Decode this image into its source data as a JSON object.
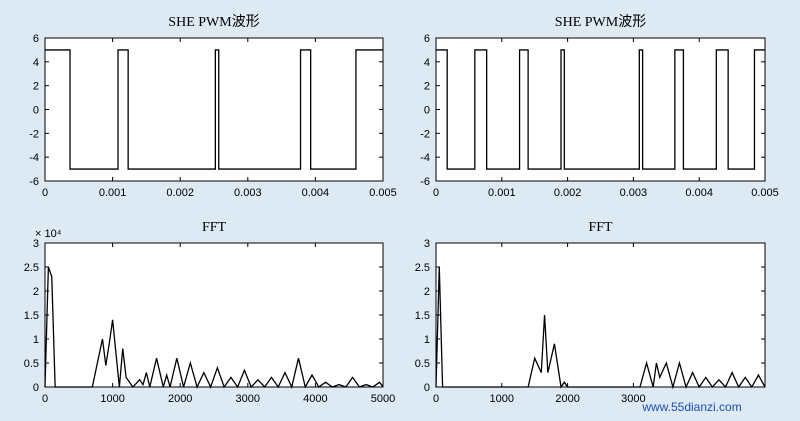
{
  "chart_data": [
    {
      "type": "line",
      "title": "SHE PWM波形",
      "xlabel": "",
      "ylabel": "",
      "xlim": [
        0,
        0.005
      ],
      "ylim": [
        -6,
        6
      ],
      "xticks": [
        "0",
        "0.001",
        "0.002",
        "0.003",
        "0.004",
        "0.005"
      ],
      "yticks": [
        "6",
        "4",
        "2",
        "0",
        "-2",
        "-4",
        "-6"
      ],
      "series": [
        {
          "x": [
            0,
            0.00037,
            0.00037,
            0.00108,
            0.00108,
            0.00123,
            0.00123,
            0.00252,
            0.00252,
            0.00257,
            0.00257,
            0.00378,
            0.00378,
            0.00393,
            0.00393,
            0.0046,
            0.0046,
            0.005
          ],
          "values": [
            5,
            5,
            -5,
            -5,
            5,
            5,
            -5,
            -5,
            5,
            5,
            -5,
            -5,
            5,
            5,
            -5,
            -5,
            5,
            5
          ]
        }
      ]
    },
    {
      "type": "line",
      "title": "SHE PWM波形",
      "xlabel": "",
      "ylabel": "",
      "xlim": [
        0,
        0.005
      ],
      "ylim": [
        -6,
        6
      ],
      "xticks": [
        "0",
        "0.001",
        "0.002",
        "0.003",
        "0.004",
        "0.005"
      ],
      "yticks": [
        "6",
        "4",
        "2",
        "0",
        "-2",
        "-4",
        "-6"
      ],
      "series": [
        {
          "x": [
            0,
            0.00017,
            0.00017,
            0.00059,
            0.00059,
            0.00077,
            0.00077,
            0.00127,
            0.00127,
            0.0014,
            0.0014,
            0.0019,
            0.0019,
            0.00195,
            0.00195,
            0.00309,
            0.00309,
            0.00314,
            0.00314,
            0.00363,
            0.00363,
            0.00376,
            0.00376,
            0.00426,
            0.00426,
            0.00444,
            0.00444,
            0.00484,
            0.00484,
            0.005
          ],
          "values": [
            5,
            5,
            -5,
            -5,
            5,
            5,
            -5,
            -5,
            5,
            5,
            -5,
            -5,
            5,
            5,
            -5,
            -5,
            5,
            5,
            -5,
            -5,
            5,
            5,
            -5,
            -5,
            5,
            5,
            -5,
            -5,
            5,
            5
          ]
        }
      ]
    },
    {
      "type": "line",
      "title": "FFT",
      "xlabel": "",
      "ylabel": "",
      "xlim": [
        0,
        5000
      ],
      "ylim": [
        0,
        3
      ],
      "scale_label": "× 10⁴",
      "xticks": [
        "0",
        "1000",
        "2000",
        "3000",
        "4000",
        "5000"
      ],
      "yticks": [
        "3",
        "2.5",
        "2",
        "1.5",
        "1",
        "0.5",
        "0"
      ],
      "series": [
        {
          "x": [
            0,
            50,
            100,
            150,
            200,
            700,
            850,
            900,
            950,
            1000,
            1100,
            1150,
            1200,
            1250,
            1300,
            1400,
            1450,
            1500,
            1550,
            1650,
            1750,
            1800,
            1850,
            1950,
            2050,
            2150,
            2250,
            2350,
            2450,
            2550,
            2650,
            2750,
            2850,
            2950,
            3050,
            3150,
            3250,
            3350,
            3450,
            3550,
            3650,
            3750,
            3850,
            3950,
            4050,
            4150,
            4250,
            4350,
            4450,
            4550,
            4650,
            4750,
            4850,
            4950,
            5000
          ],
          "values": [
            0,
            2.5,
            2.3,
            0,
            0,
            0,
            1.0,
            0.45,
            0.9,
            1.4,
            0,
            0.8,
            0.2,
            0.1,
            0,
            0.15,
            0.05,
            0.3,
            0,
            0.6,
            0,
            0.25,
            0,
            0.6,
            0,
            0.5,
            0,
            0.3,
            0,
            0.4,
            0,
            0.2,
            0,
            0.35,
            0,
            0.15,
            0,
            0.2,
            0,
            0.3,
            0,
            0.6,
            0,
            0.25,
            0,
            0.1,
            0,
            0.05,
            0,
            0.2,
            0,
            0.05,
            0,
            0.1,
            0
          ]
        }
      ]
    },
    {
      "type": "line",
      "title": "FFT",
      "xlabel": "",
      "ylabel": "",
      "xlim": [
        0,
        5000
      ],
      "ylim": [
        0,
        3
      ],
      "xticks": [
        "0",
        "1000",
        "2000",
        "3000"
      ],
      "yticks": [
        "3",
        "2.5",
        "2",
        "1.5",
        "1",
        "0.5",
        "0"
      ],
      "series": [
        {
          "x": [
            0,
            50,
            100,
            150,
            1400,
            1500,
            1600,
            1650,
            1700,
            1800,
            1900,
            1950,
            2000,
            2100,
            3100,
            3200,
            3300,
            3350,
            3400,
            3500,
            3600,
            3700,
            3800,
            3900,
            4000,
            4100,
            4200,
            4300,
            4400,
            4500,
            4600,
            4700,
            4800,
            4900,
            5000
          ],
          "values": [
            0,
            2.5,
            0,
            0,
            0,
            0.6,
            0.3,
            1.5,
            0.3,
            0.9,
            0,
            0.1,
            0,
            0,
            0,
            0.5,
            0,
            0.5,
            0.2,
            0.5,
            0,
            0.5,
            0,
            0.3,
            0,
            0.2,
            0,
            0.15,
            0,
            0.3,
            0,
            0.2,
            0,
            0.25,
            0
          ]
        }
      ]
    }
  ],
  "watermark": {
    "text": "www.55dianzi.com"
  }
}
